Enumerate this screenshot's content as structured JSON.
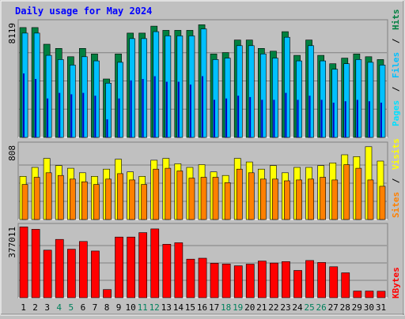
{
  "title": "Daily usage for May 2024",
  "colors": {
    "background": "#c0c0c0",
    "title": "#0000ff",
    "hits": "#008040",
    "files": "#00c0ff",
    "pages": "#00e0ff",
    "visits": "#ffff00",
    "sites": "#ff8000",
    "kbytes": "#ff0000",
    "weekend_label": "#00805c",
    "grid": "#808080"
  },
  "chart_data": [
    {
      "type": "bar",
      "categories": [
        "1",
        "2",
        "3",
        "4",
        "5",
        "6",
        "7",
        "8",
        "9",
        "10",
        "11",
        "12",
        "13",
        "14",
        "15",
        "16",
        "17",
        "18",
        "19",
        "20",
        "21",
        "22",
        "23",
        "24",
        "25",
        "26",
        "27",
        "28",
        "29",
        "30",
        "31"
      ],
      "y_tick_label": "8119",
      "ylim": [
        0,
        8119
      ],
      "series": [
        {
          "name": "Hits",
          "values": [
            7900,
            7900,
            6700,
            6400,
            5800,
            6400,
            6000,
            4200,
            6000,
            7500,
            7500,
            8000,
            7700,
            7700,
            7700,
            8100,
            6000,
            6100,
            7000,
            7000,
            6400,
            6200,
            7600,
            5900,
            7000,
            5900,
            5300,
            5700,
            6000,
            5800,
            5600
          ]
        },
        {
          "name": "Files",
          "values": [
            7500,
            7500,
            5900,
            5600,
            5200,
            5800,
            5500,
            3900,
            5400,
            7100,
            7100,
            7600,
            7300,
            7300,
            7300,
            7800,
            5600,
            5700,
            6600,
            6600,
            6000,
            5700,
            7200,
            5500,
            6600,
            5500,
            4900,
            5300,
            5600,
            5400,
            5200
          ]
        },
        {
          "name": "Pages",
          "values": [
            4600,
            4200,
            2800,
            3200,
            3100,
            3200,
            3000,
            1300,
            2800,
            4100,
            4200,
            4400,
            4000,
            4000,
            3800,
            4400,
            2700,
            2800,
            3000,
            2900,
            2700,
            2700,
            3200,
            2700,
            3000,
            2700,
            2500,
            2600,
            2700,
            2600,
            2500
          ]
        }
      ],
      "legend": [
        "Pages",
        "/",
        "Files",
        "/",
        "Hits"
      ]
    },
    {
      "type": "bar",
      "categories": [
        "1",
        "2",
        "3",
        "4",
        "5",
        "6",
        "7",
        "8",
        "9",
        "10",
        "11",
        "12",
        "13",
        "14",
        "15",
        "16",
        "17",
        "18",
        "19",
        "20",
        "21",
        "22",
        "23",
        "24",
        "25",
        "26",
        "27",
        "28",
        "29",
        "30",
        "31"
      ],
      "y_tick_label": "808",
      "ylim": [
        0,
        808
      ],
      "series": [
        {
          "name": "Visits",
          "values": [
            480,
            580,
            680,
            600,
            570,
            520,
            480,
            560,
            670,
            530,
            480,
            660,
            680,
            620,
            580,
            610,
            530,
            490,
            680,
            640,
            560,
            600,
            520,
            580,
            580,
            600,
            630,
            720,
            700,
            810,
            650
          ]
        },
        {
          "name": "Sites",
          "values": [
            390,
            470,
            520,
            490,
            450,
            420,
            390,
            450,
            510,
            440,
            390,
            560,
            570,
            540,
            460,
            470,
            470,
            410,
            560,
            520,
            450,
            450,
            430,
            440,
            450,
            470,
            440,
            610,
            570,
            440,
            370
          ]
        }
      ],
      "legend": [
        "Sites",
        "/",
        "Visits"
      ]
    },
    {
      "type": "bar",
      "categories": [
        "1",
        "2",
        "3",
        "4",
        "5",
        "6",
        "7",
        "8",
        "9",
        "10",
        "11",
        "12",
        "13",
        "14",
        "15",
        "16",
        "17",
        "18",
        "19",
        "20",
        "21",
        "22",
        "23",
        "24",
        "25",
        "26",
        "27",
        "28",
        "29",
        "30",
        "31"
      ],
      "y_tick_label": "377011",
      "ylim": [
        0,
        377011
      ],
      "series": [
        {
          "name": "KBytes",
          "values": [
            384000,
            371000,
            258000,
            316000,
            263000,
            305000,
            253000,
            44000,
            329000,
            329000,
            353000,
            373000,
            290000,
            298000,
            209000,
            214000,
            187000,
            183000,
            173000,
            182000,
            199000,
            188000,
            196000,
            148000,
            202000,
            191000,
            168000,
            135000,
            36000,
            36000,
            35000
          ]
        }
      ],
      "legend": [
        "KBytes"
      ]
    }
  ],
  "x_labels": [
    "1",
    "2",
    "3",
    "4",
    "5",
    "6",
    "7",
    "8",
    "9",
    "10",
    "11",
    "12",
    "13",
    "14",
    "15",
    "16",
    "17",
    "18",
    "19",
    "20",
    "21",
    "22",
    "23",
    "24",
    "25",
    "26",
    "27",
    "28",
    "29",
    "30",
    "31"
  ],
  "weekend_days": [
    "4",
    "5",
    "11",
    "12",
    "18",
    "19",
    "25",
    "26"
  ],
  "legend_text": {
    "pages": "Pages",
    "files": "Files",
    "hits": "Hits",
    "sites": "Sites",
    "visits": "Visits",
    "kbytes": "KBytes",
    "sep": "/"
  }
}
